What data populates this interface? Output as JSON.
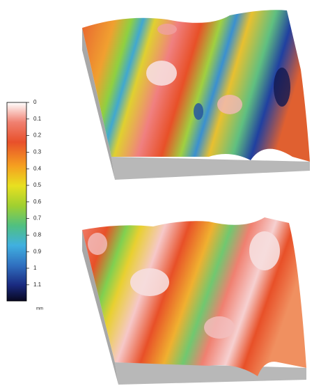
{
  "colorbar": {
    "ticks": [
      "0",
      "0.1",
      "0.2",
      "0.3",
      "0.4",
      "0.5",
      "0.6",
      "0.7",
      "0.8",
      "0.9",
      "1",
      "1.1"
    ],
    "unit": "mm"
  }
}
